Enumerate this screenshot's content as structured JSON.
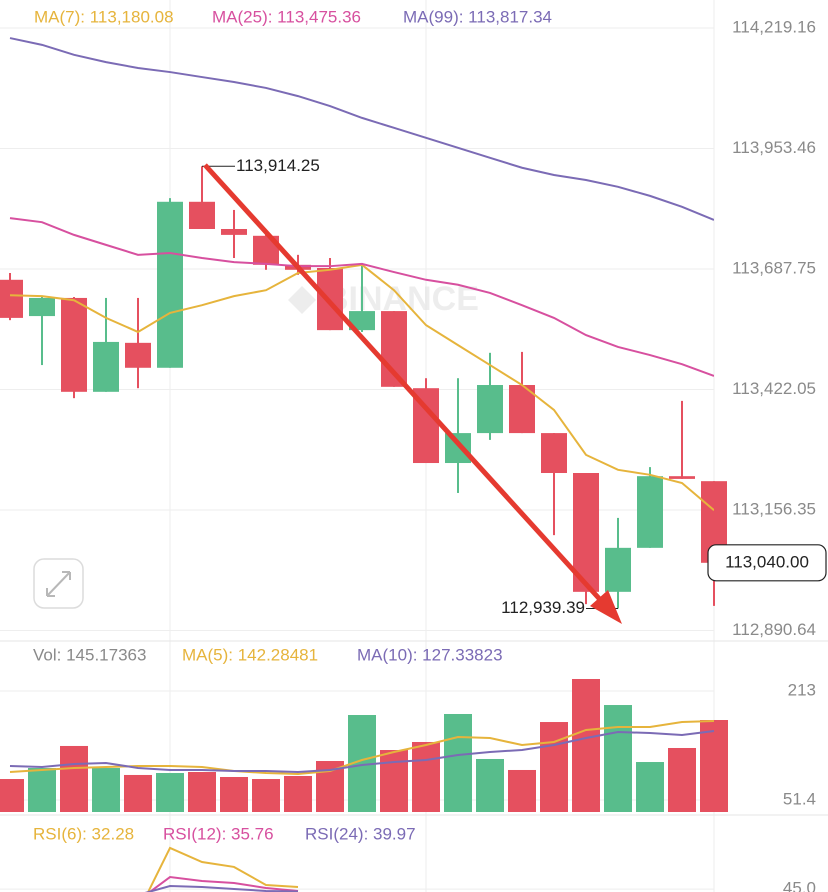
{
  "chart_data": [
    {
      "type": "candlestick",
      "watermark": "BINANCE",
      "open": [
        113664,
        113584,
        113624,
        113417,
        113525,
        113470,
        113836,
        113776,
        113761,
        113697,
        113690,
        113553,
        113595,
        113425,
        113260,
        113326,
        113432,
        113326,
        113238,
        112976,
        113073,
        113231,
        113220
      ],
      "high": [
        113679,
        113628,
        113626,
        113624,
        113624,
        113844,
        113914.25,
        113818,
        113765,
        113719,
        113712,
        113701,
        113595,
        113447,
        113447,
        113503,
        113505,
        113326,
        113238,
        113139,
        113251,
        113397,
        113220
      ],
      "low": [
        113575,
        113476,
        113403,
        113417,
        113425,
        113470,
        113776,
        113712,
        113686,
        113675,
        113553,
        113549,
        113428,
        113260,
        113194,
        113311,
        113326,
        113101,
        112949,
        112939.39,
        113073,
        113225,
        112945
      ],
      "close": [
        113580,
        113624,
        113417,
        113527,
        113470,
        113836,
        113776,
        113763,
        113697,
        113686,
        113553,
        113595,
        113428,
        113260,
        113326,
        113432,
        113326,
        113238,
        112976,
        113073,
        113231,
        113225,
        113040.0
      ],
      "up_color": "#58bd8c",
      "down_color": "#e5505f",
      "ylim": [
        112869.8,
        114280.9
      ],
      "yticks": [
        {
          "value": 114219.16,
          "label": "114,219.16"
        },
        {
          "value": 113953.46,
          "label": "113,953.46"
        },
        {
          "value": 113687.75,
          "label": "113,687.75"
        },
        {
          "value": 113422.05,
          "label": "113,422.05"
        },
        {
          "value": 113156.35,
          "label": "113,156.35"
        },
        {
          "value": 112890.64,
          "label": "112,890.64"
        }
      ],
      "grid": true,
      "series": [
        {
          "name": "MA(7): 113,180.08",
          "color": "#e6b43c",
          "values": [
            113630,
            113628,
            113619,
            113580,
            113549,
            113591,
            113608,
            113628,
            113641,
            113679,
            113686,
            113697,
            113641,
            113564,
            113520,
            113476,
            113432,
            113377,
            113278,
            113245,
            113234,
            113216,
            113156
          ]
        },
        {
          "name": "MA(25): 113,475.36",
          "color": "#d7509f",
          "values": [
            113800,
            113791,
            113763,
            113741,
            113719,
            113723,
            113712,
            113703,
            113699,
            113694,
            113694,
            113699,
            113681,
            113664,
            113653,
            113635,
            113608,
            113580,
            113542,
            113516,
            113498,
            113478,
            113452
          ]
        },
        {
          "name": "MA(99): 113,817.34",
          "color": "#7b6bb5",
          "values": [
            114197,
            114182,
            114160,
            114144,
            114131,
            114122,
            114111,
            114100,
            114087,
            114069,
            114047,
            114021,
            113999,
            113977,
            113955,
            113933,
            113911,
            113895,
            113884,
            113869,
            113849,
            113825,
            113796
          ]
        }
      ],
      "high_label": {
        "value": 113914.25,
        "label": "113,914.25"
      },
      "low_label": {
        "value": 112939.39,
        "label": "112,939.39"
      },
      "current_price": {
        "value": 113040.0,
        "label": "113,040.00"
      }
    },
    {
      "type": "bar",
      "legend": "Vol: 145.17363",
      "values": [
        82.5,
        98.8,
        131.5,
        98.8,
        88.5,
        91.4,
        92.9,
        85.5,
        82.5,
        87.0,
        109.2,
        177.4,
        125.5,
        137.4,
        178.9,
        112.2,
        95.9,
        167.0,
        230.8,
        192.2,
        107.7,
        128.5,
        170.0
      ],
      "ylim": [
        33.6,
        281.2
      ],
      "yticks": [
        213,
        51.4
      ],
      "series": [
        {
          "name": "MA(5): 142.28481",
          "color": "#e6b43c",
          "values": [
            92.9,
            95.9,
            98.8,
            100.3,
            101.8,
            101.8,
            100.3,
            94.4,
            91.4,
            89.9,
            94.4,
            110.7,
            122.6,
            132.9,
            144.8,
            143.3,
            132.9,
            137.4,
            155.2,
            159.6,
            159.6,
            167.0,
            168.5
          ]
        },
        {
          "name": "MA(10): 127.33823",
          "color": "#7b6bb5",
          "values": [
            101.8,
            100.3,
            104.8,
            106.3,
            98.8,
            95.9,
            95.9,
            94.4,
            94.4,
            92.9,
            95.9,
            103.3,
            107.7,
            110.7,
            118.1,
            122.6,
            125.5,
            132.9,
            143.3,
            152.2,
            150.7,
            147.8,
            153.7
          ]
        }
      ]
    },
    {
      "type": "line",
      "ylim": [
        42.5,
        104
      ],
      "yticks": [
        {
          "value": 45,
          "label": "45.0"
        }
      ],
      "series": [
        {
          "name": "RSI(6): 32.28",
          "color": "#e6b43c",
          "values": [
            null,
            null,
            null,
            null,
            25,
            80.1,
            68.1,
            63.9,
            48.5,
            46.8,
            null,
            null,
            null,
            null,
            null,
            null,
            null,
            null,
            null,
            null,
            null,
            null,
            null
          ]
        },
        {
          "name": "RSI(12): 35.76",
          "color": "#d7509f",
          "values": [
            null,
            null,
            null,
            null,
            35,
            55.3,
            51.9,
            50.2,
            45.9,
            43.4,
            null,
            null,
            null,
            null,
            null,
            null,
            null,
            null,
            null,
            null,
            null,
            null,
            null
          ]
        },
        {
          "name": "RSI(24): 39.97",
          "color": "#7b6bb5",
          "values": [
            null,
            null,
            null,
            null,
            40,
            47.6,
            46.8,
            45.1,
            43.4,
            42.9,
            null,
            null,
            null,
            null,
            null,
            null,
            null,
            null,
            null,
            null,
            null,
            null,
            null
          ]
        }
      ]
    }
  ]
}
